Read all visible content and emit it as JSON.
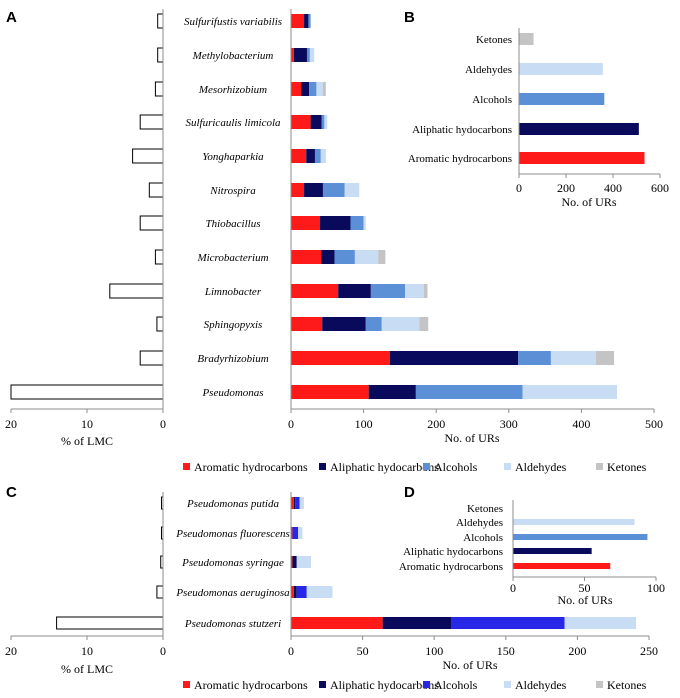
{
  "colors": {
    "aromatic": "#ff1a1a",
    "aliphatic": "#0a0a5c",
    "alcohols_ab": "#5b8fd6",
    "alcohols_cd": "#2727e8",
    "aldehydes": "#c8dcf4",
    "ketones": "#c4c4c4",
    "axis": "#8c8c8c"
  },
  "chart_data": [
    {
      "panel": "A",
      "type": "bar",
      "orientation": "horizontal-reversed",
      "categories": [
        "Sulfurifustis variabilis",
        "Methylobacterium",
        "Mesorhizobium",
        "Sulfuricaulis limicola",
        "Yonghaparkia",
        "Nitrospira",
        "Thiobacillus",
        "Microbacterium",
        "Limnobacter",
        "Sphingopyxis",
        "Bradyrhizobium",
        "Pseudomonas"
      ],
      "values": [
        0.7,
        0.7,
        1.0,
        3.0,
        4.0,
        1.8,
        3.0,
        1.0,
        7.0,
        0.8,
        3.0,
        20.0
      ],
      "xlabel": "% of LMC",
      "xlim": [
        0,
        20
      ],
      "xticks": [
        "20",
        "10",
        "0"
      ]
    },
    {
      "panel": "A-right",
      "type": "bar",
      "orientation": "horizontal-stacked",
      "categories": [
        "Sulfurifustis variabilis",
        "Methylobacterium",
        "Mesorhizobium",
        "Sulfuricaulis limicola",
        "Yonghaparkia",
        "Nitrospira",
        "Thiobacillus",
        "Microbacterium",
        "Limnobacter",
        "Sphingopyxis",
        "Bradyrhizobium",
        "Pseudomonas"
      ],
      "series": [
        {
          "name": "Aromatic hydrocarbons",
          "values": [
            18,
            4,
            14,
            27,
            21,
            18,
            40,
            42,
            65,
            43,
            136,
            107
          ]
        },
        {
          "name": "Aliphatic hydocarbons",
          "values": [
            6,
            18,
            11,
            15,
            12,
            26,
            42,
            18,
            45,
            60,
            177,
            65
          ]
        },
        {
          "name": "Alcohols",
          "values": [
            3,
            4,
            10,
            4,
            8,
            30,
            18,
            28,
            47,
            22,
            45,
            147
          ]
        },
        {
          "name": "Aldehydes",
          "values": [
            0,
            6,
            9,
            4,
            7,
            20,
            3,
            32,
            26,
            52,
            62,
            130
          ]
        },
        {
          "name": "Ketones",
          "values": [
            0,
            0,
            4,
            0,
            0,
            0,
            0,
            10,
            5,
            12,
            25,
            0
          ]
        }
      ],
      "xlabel": "No. of URs",
      "xlim": [
        0,
        500
      ],
      "xticks": [
        "0",
        "100",
        "200",
        "300",
        "400",
        "500"
      ],
      "legend": "bottom"
    },
    {
      "panel": "B",
      "type": "bar",
      "orientation": "horizontal",
      "categories": [
        "Ketones",
        "Aldehydes",
        "Alcohols",
        "Aliphatic hydocarbons",
        "Aromatic hydrocarbons"
      ],
      "values": [
        62,
        357,
        363,
        510,
        534
      ],
      "xlabel": "No. of URs",
      "xlim": [
        0,
        600
      ],
      "xticks": [
        "0",
        "200",
        "400",
        "600"
      ]
    },
    {
      "panel": "C",
      "type": "bar",
      "orientation": "horizontal-reversed",
      "categories": [
        "Pseudomonas  putida",
        "Pseudomonas  fluorescens",
        "Pseudomonas  syringae",
        "Pseudomonas  aeruginosa",
        "Pseudomonas  stutzeri"
      ],
      "values": [
        0.2,
        0.2,
        0.3,
        0.8,
        14.0
      ],
      "xlabel": "% of LMC",
      "xlim": [
        0,
        20
      ],
      "xticks": [
        "20",
        "10",
        "0"
      ]
    },
    {
      "panel": "C-right",
      "type": "bar",
      "orientation": "horizontal-stacked",
      "categories": [
        "Pseudomonas  putida",
        "Pseudomonas  fluorescens",
        "Pseudomonas  syringae",
        "Pseudomonas  aeruginosa",
        "Pseudomonas  stutzeri"
      ],
      "series": [
        {
          "name": "Aromatic hydrocarbons",
          "values": [
            2,
            1,
            1,
            2,
            64
          ]
        },
        {
          "name": "Aliphatic hydocarbons",
          "values": [
            1,
            0,
            3,
            2,
            48
          ]
        },
        {
          "name": "Alcohols",
          "values": [
            3,
            4,
            0,
            7,
            79
          ]
        },
        {
          "name": "Aldehydes",
          "values": [
            3,
            3,
            10,
            18,
            50
          ]
        },
        {
          "name": "Ketones",
          "values": [
            0,
            0,
            0,
            0,
            0
          ]
        }
      ],
      "xlabel": "No. of URs",
      "xlim": [
        0,
        250
      ],
      "xticks": [
        "0",
        "50",
        "100",
        "150",
        "200",
        "250"
      ],
      "legend": "bottom"
    },
    {
      "panel": "D",
      "type": "bar",
      "orientation": "horizontal",
      "categories": [
        "Ketones",
        "Aldehydes",
        "Alcohols",
        "Aliphatic hydocarbons",
        "Aromatic hydrocarbons"
      ],
      "values": [
        0,
        85,
        94,
        55,
        68
      ],
      "xlabel": "No. of URs",
      "xlim": [
        0,
        100
      ],
      "xticks": [
        "0",
        "50",
        "100"
      ]
    }
  ],
  "labels": {
    "panel_A": "A",
    "panel_B": "B",
    "panel_C": "C",
    "panel_D": "D"
  },
  "legend_top": [
    "Aromatic hydrocarbons",
    "Aliphatic hydocarbons",
    "Alcohols",
    "Aldehydes",
    "Ketones"
  ],
  "legend_bottom": [
    "Aromatic hydrocarbons",
    "Aliphatic hydocarbons",
    "Alcohols",
    "Aldehydes",
    "Ketones"
  ]
}
